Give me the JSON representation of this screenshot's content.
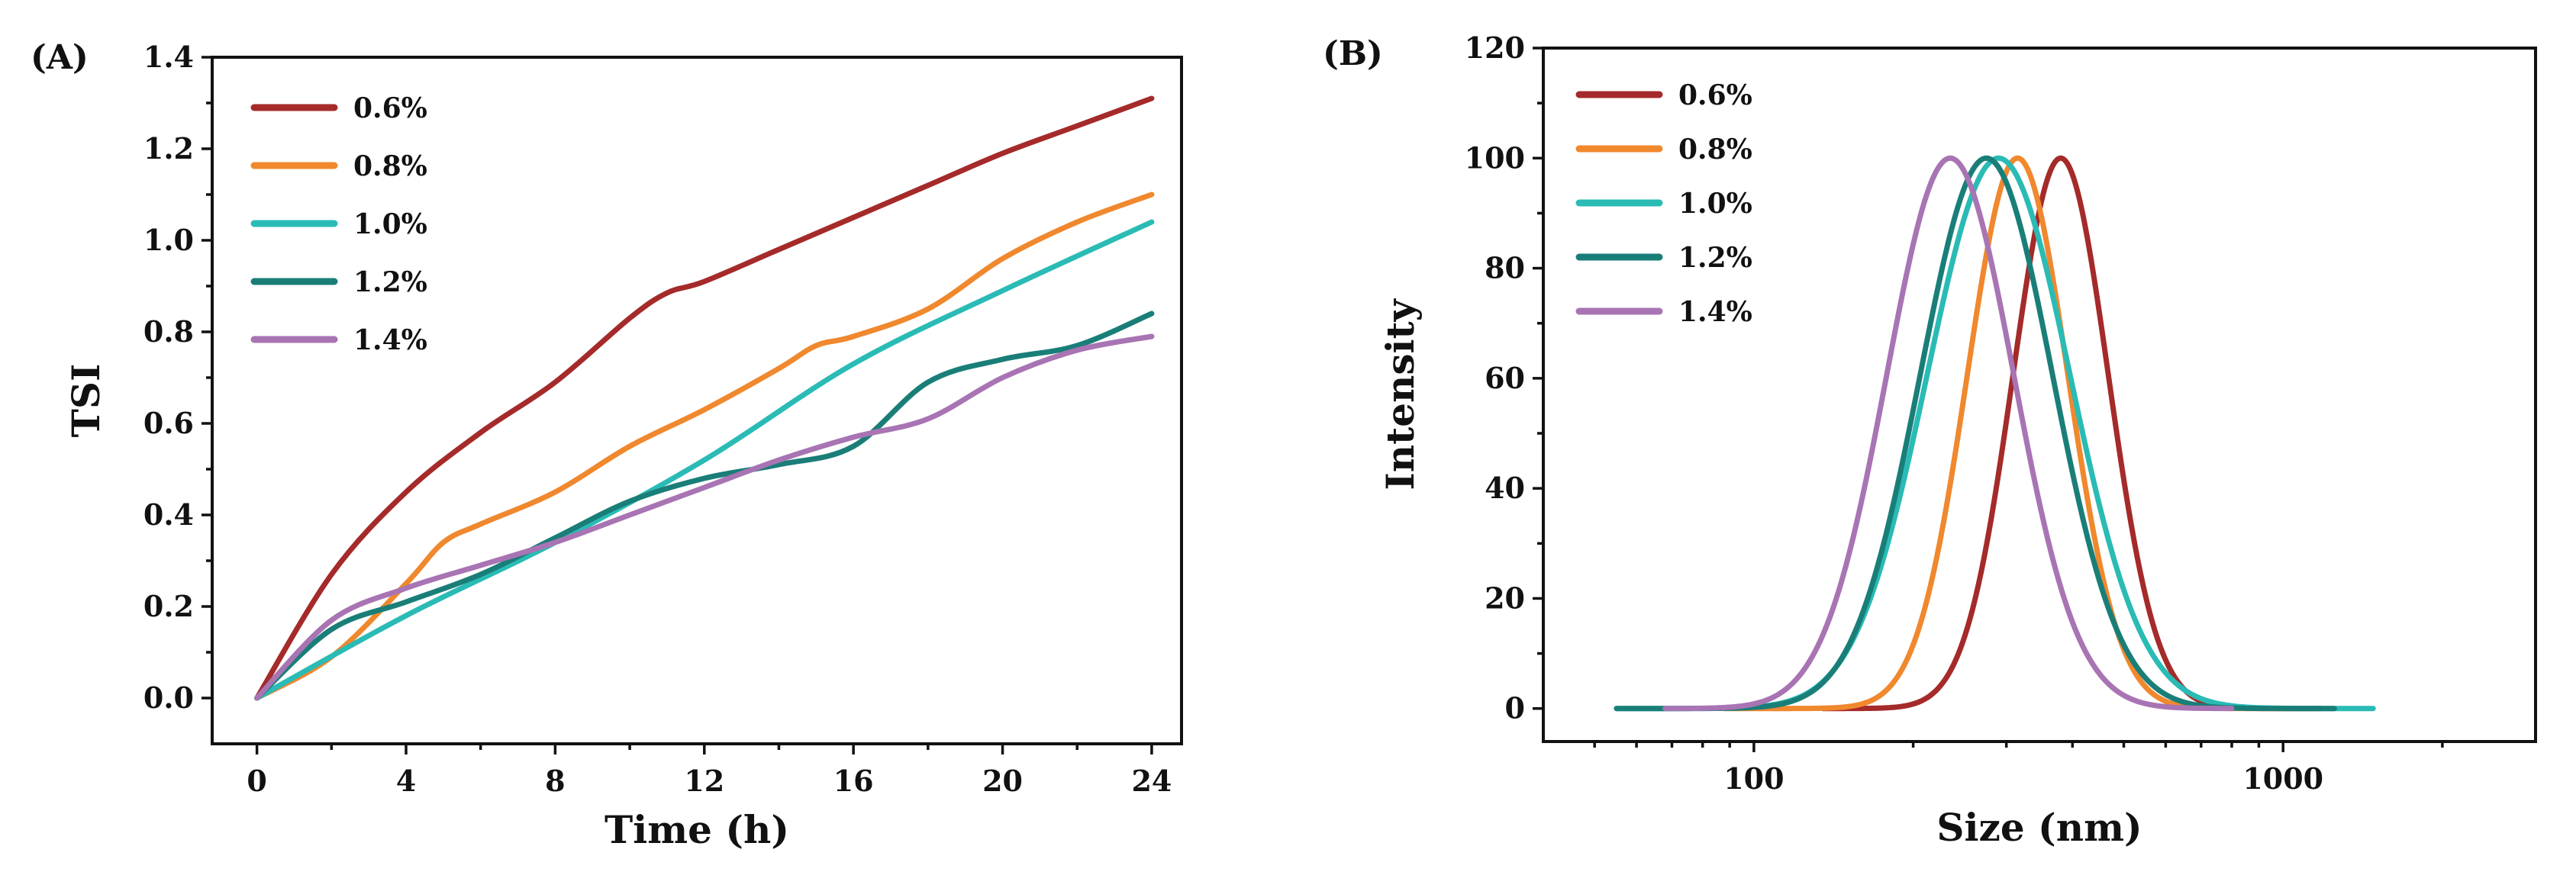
{
  "chart_data": [
    {
      "type": "line",
      "panel_label": "(A)",
      "xlabel": "Time (h)",
      "ylabel": "TSI",
      "xlim": [
        -1.2,
        24.8
      ],
      "ylim": [
        -0.1,
        1.4
      ],
      "xticks": [
        0,
        4,
        8,
        12,
        16,
        20,
        24
      ],
      "yticks": [
        0.0,
        0.2,
        0.4,
        0.6,
        0.8,
        1.0,
        1.2,
        1.4
      ],
      "xtick_labels": [
        "0",
        "4",
        "8",
        "12",
        "16",
        "20",
        "24"
      ],
      "ytick_labels": [
        "0.0",
        "0.2",
        "0.4",
        "0.6",
        "0.8",
        "1.0",
        "1.2",
        "1.4"
      ],
      "legend_position": "top-left",
      "series": [
        {
          "name": "0.6%",
          "color": "#A52A2A",
          "x": [
            0,
            2,
            4,
            6,
            8,
            10,
            11,
            12,
            14,
            16,
            18,
            20,
            22,
            24
          ],
          "y": [
            0,
            0.27,
            0.45,
            0.58,
            0.69,
            0.83,
            0.885,
            0.91,
            0.98,
            1.05,
            1.12,
            1.19,
            1.25,
            1.31
          ]
        },
        {
          "name": "0.8%",
          "color": "#F0882E",
          "x": [
            0,
            2,
            4,
            5,
            6,
            8,
            10,
            12,
            14,
            15,
            16,
            18,
            20,
            22,
            24
          ],
          "y": [
            0,
            0.09,
            0.25,
            0.34,
            0.38,
            0.45,
            0.55,
            0.63,
            0.72,
            0.77,
            0.79,
            0.85,
            0.96,
            1.04,
            1.1
          ]
        },
        {
          "name": "1.0%",
          "color": "#2ABBB5",
          "x": [
            0,
            4,
            8,
            12,
            16,
            20,
            24
          ],
          "y": [
            0,
            0.18,
            0.34,
            0.52,
            0.73,
            0.89,
            1.04
          ]
        },
        {
          "name": "1.2%",
          "color": "#1A7E78",
          "x": [
            0,
            2,
            4,
            6,
            8,
            10,
            12,
            14,
            16,
            18,
            20,
            22,
            24
          ],
          "y": [
            0,
            0.15,
            0.21,
            0.27,
            0.35,
            0.43,
            0.48,
            0.51,
            0.55,
            0.69,
            0.74,
            0.77,
            0.84
          ]
        },
        {
          "name": "1.4%",
          "color": "#A874B3",
          "x": [
            0,
            2,
            4,
            6,
            8,
            10,
            12,
            14,
            16,
            18,
            20,
            22,
            24
          ],
          "y": [
            0,
            0.17,
            0.24,
            0.29,
            0.34,
            0.4,
            0.46,
            0.52,
            0.57,
            0.61,
            0.7,
            0.76,
            0.79
          ]
        }
      ]
    },
    {
      "type": "line",
      "panel_label": "(B)",
      "xlabel": "Size (nm)",
      "ylabel": "Intensity",
      "xscale": "log",
      "xlim": [
        40,
        3000
      ],
      "ylim": [
        -6,
        120
      ],
      "xticks": [
        100,
        1000
      ],
      "xtick_labels": [
        "100",
        "1000"
      ],
      "yticks": [
        0,
        20,
        40,
        60,
        80,
        100,
        120
      ],
      "ytick_labels": [
        "0",
        "20",
        "40",
        "60",
        "80",
        "100",
        "120"
      ],
      "legend_position": "top-left",
      "series": [
        {
          "name": "0.6%",
          "color": "#A52A2A",
          "peak": 380,
          "sigma_log10": 0.09,
          "x_range": [
            135,
            1180
          ]
        },
        {
          "name": "0.8%",
          "color": "#F0882E",
          "peak": 315,
          "sigma_log10": 0.095,
          "x_range": [
            88,
            1120
          ]
        },
        {
          "name": "1.0%",
          "color": "#2ABBB5",
          "peak": 290,
          "sigma_log10": 0.135,
          "x_range": [
            55,
            1480
          ]
        },
        {
          "name": "1.2%",
          "color": "#1A7E78",
          "peak": 275,
          "sigma_log10": 0.125,
          "x_range": [
            55,
            1250
          ]
        },
        {
          "name": "1.4%",
          "color": "#A874B3",
          "peak": 235,
          "sigma_log10": 0.12,
          "x_range": [
            68,
            800
          ]
        }
      ]
    }
  ]
}
